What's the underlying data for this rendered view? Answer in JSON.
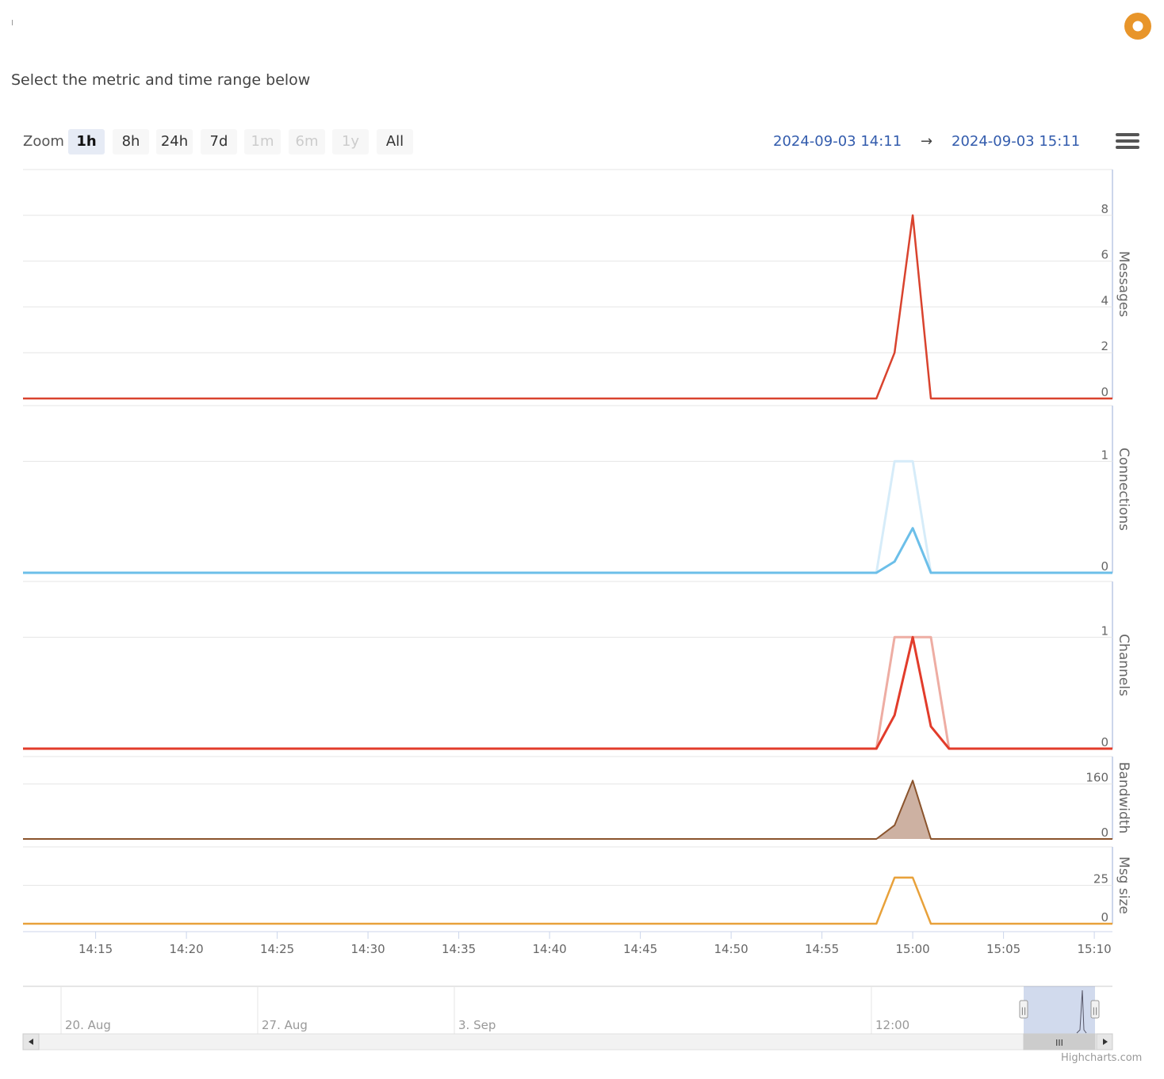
{
  "subtitle": "Select the metric and time range below",
  "zoom": {
    "label": "Zoom",
    "buttons": [
      {
        "label": "1h",
        "state": "active"
      },
      {
        "label": "8h",
        "state": "normal"
      },
      {
        "label": "24h",
        "state": "normal"
      },
      {
        "label": "7d",
        "state": "normal"
      },
      {
        "label": "1m",
        "state": "disabled"
      },
      {
        "label": "6m",
        "state": "disabled"
      },
      {
        "label": "1y",
        "state": "disabled"
      },
      {
        "label": "All",
        "state": "normal"
      }
    ]
  },
  "range": {
    "from": "2024-09-03 14:11",
    "arrow": "→",
    "to": "2024-09-03 15:11"
  },
  "credits": "Highcharts.com",
  "colors": {
    "accent": "#335cad",
    "logo_outer": "#e8952a",
    "logo_inner": "#ffffff"
  },
  "chart_data": {
    "type": "line",
    "x_axis": {
      "range": [
        "14:11",
        "15:11"
      ],
      "ticks": [
        "14:15",
        "14:20",
        "14:25",
        "14:30",
        "14:35",
        "14:40",
        "14:45",
        "14:50",
        "14:55",
        "15:00",
        "15:05",
        "15:10"
      ]
    },
    "panels": [
      {
        "label": "Messages",
        "ylim": [
          0,
          10
        ],
        "y_ticks": [
          0,
          2,
          4,
          6,
          8
        ],
        "series": [
          {
            "color": "#d9432e",
            "width": 2.5,
            "type": "line",
            "points": [
              [
                "14:11",
                0
              ],
              [
                "14:58",
                0
              ],
              [
                "14:59",
                2
              ],
              [
                "15:00",
                8
              ],
              [
                "15:01",
                0
              ],
              [
                "15:11",
                0
              ]
            ]
          }
        ]
      },
      {
        "label": "Connections",
        "ylim": [
          0,
          1.5
        ],
        "y_ticks": [
          0,
          1
        ],
        "series": [
          {
            "color": "#d6ecf9",
            "width": 3,
            "type": "line",
            "points": [
              [
                "14:11",
                0
              ],
              [
                "14:58",
                0
              ],
              [
                "14:59",
                1
              ],
              [
                "15:00",
                1
              ],
              [
                "15:01",
                0
              ],
              [
                "15:11",
                0
              ]
            ]
          },
          {
            "color": "#6cbfe9",
            "width": 3,
            "type": "line",
            "points": [
              [
                "14:11",
                0
              ],
              [
                "14:58",
                0
              ],
              [
                "14:59",
                0.1
              ],
              [
                "15:00",
                0.4
              ],
              [
                "15:01",
                0
              ],
              [
                "15:11",
                0
              ]
            ]
          }
        ]
      },
      {
        "label": "Channels",
        "ylim": [
          0,
          1.5
        ],
        "y_ticks": [
          0,
          1
        ],
        "series": [
          {
            "color": "#eeada3",
            "width": 3,
            "type": "line",
            "points": [
              [
                "14:11",
                0
              ],
              [
                "14:58",
                0
              ],
              [
                "14:59",
                1
              ],
              [
                "15:01",
                1
              ],
              [
                "15:02",
                0
              ],
              [
                "15:11",
                0
              ]
            ]
          },
          {
            "color": "#e23c2b",
            "width": 3,
            "type": "line",
            "points": [
              [
                "14:11",
                0
              ],
              [
                "14:58",
                0
              ],
              [
                "14:59",
                0.3
              ],
              [
                "15:00",
                1
              ],
              [
                "15:01",
                0.2
              ],
              [
                "15:02",
                0
              ],
              [
                "15:11",
                0
              ]
            ]
          }
        ]
      },
      {
        "label": "Bandwidth",
        "ylim": [
          0,
          240
        ],
        "y_ticks": [
          0,
          160
        ],
        "series": [
          {
            "color": "#8a532c",
            "fill": "#cdb1a2",
            "width": 2,
            "type": "area",
            "points": [
              [
                "14:11",
                0
              ],
              [
                "14:58",
                0
              ],
              [
                "14:59",
                40
              ],
              [
                "15:00",
                170
              ],
              [
                "15:01",
                0
              ],
              [
                "15:11",
                0
              ]
            ]
          }
        ]
      },
      {
        "label": "Msg size",
        "ylim": [
          0,
          50
        ],
        "y_ticks": [
          0,
          25
        ],
        "series": [
          {
            "color": "#e8a13a",
            "width": 2.5,
            "type": "line",
            "points": [
              [
                "14:11",
                0
              ],
              [
                "14:58",
                0
              ],
              [
                "14:59",
                30
              ],
              [
                "15:00",
                30
              ],
              [
                "15:01",
                0
              ],
              [
                "15:11",
                0
              ]
            ]
          }
        ]
      }
    ],
    "navigator": {
      "labels": [
        "20. Aug",
        "27. Aug",
        "3. Sep",
        "12:00"
      ],
      "handle_glyph": "||",
      "scrollbar_glyph": "III"
    }
  }
}
